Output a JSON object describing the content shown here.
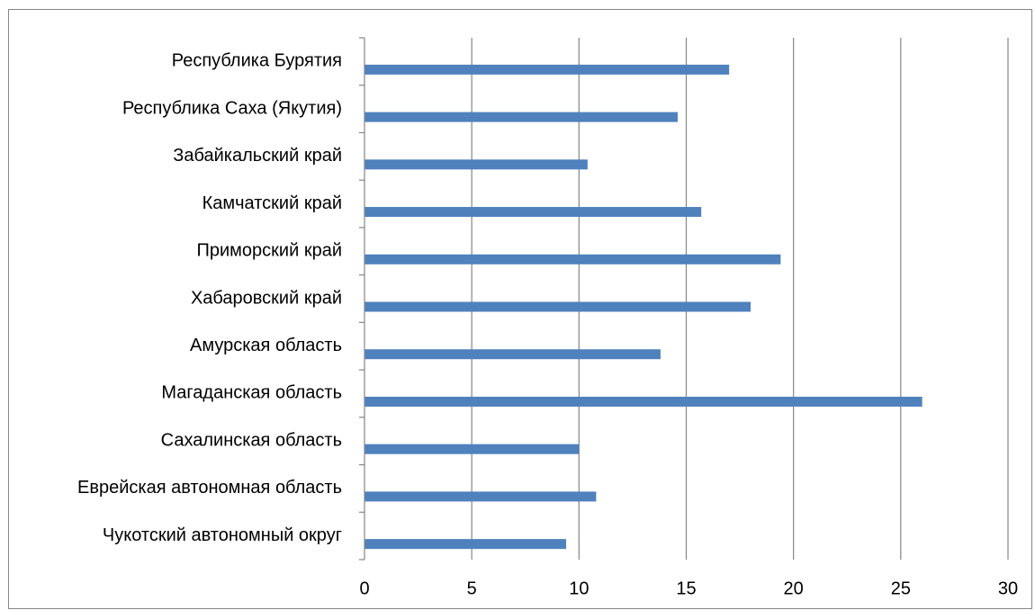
{
  "chart_data": {
    "type": "bar",
    "orientation": "horizontal",
    "title": "",
    "xlabel": "",
    "ylabel": "",
    "categories": [
      "Республика Бурятия",
      "Республика Саха (Якутия)",
      "Забайкальский край",
      "Камчатский край",
      "Приморский край",
      "Хабаровский край",
      "Амурская область",
      "Магаданская область",
      "Сахалинская область",
      "Еврейская автономная область",
      "Чукотский автономный округ"
    ],
    "values": [
      17.0,
      14.6,
      10.4,
      15.7,
      19.4,
      18.0,
      13.8,
      26.0,
      10.0,
      10.8,
      9.4
    ],
    "xlim": [
      0,
      30
    ],
    "xticks": [
      0,
      5,
      10,
      15,
      20,
      25,
      30
    ],
    "grid": true,
    "legend": "none",
    "bar_color": "#4f81bd",
    "grid_color": "#868686"
  }
}
